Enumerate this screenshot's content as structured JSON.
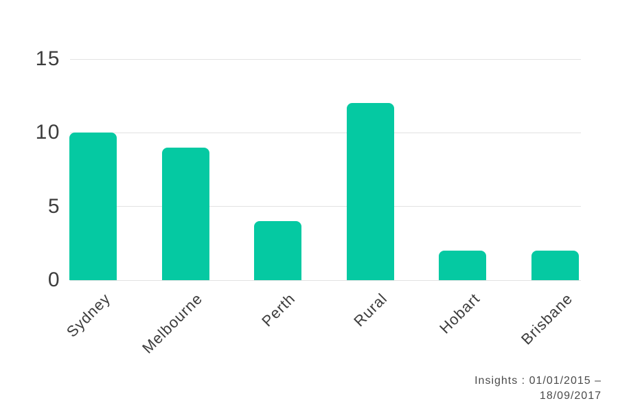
{
  "chart_data": {
    "type": "bar",
    "categories": [
      "Sydney",
      "Melbourne",
      "Perth",
      "Rural",
      "Hobart",
      "Brisbane"
    ],
    "values": [
      10,
      9,
      4,
      12,
      2,
      2
    ],
    "ylim": [
      0,
      15
    ],
    "yticks": [
      0,
      5,
      10,
      15
    ],
    "grid": true,
    "legend": false,
    "bar_color": "#05c9a2",
    "grid_color": "#e2e2e2",
    "label_color": "#3c3c3c",
    "note_color": "#4a4a4a"
  },
  "footer": {
    "line1": "Insights : 01/01/2015 –",
    "line2": "18/09/2017"
  }
}
